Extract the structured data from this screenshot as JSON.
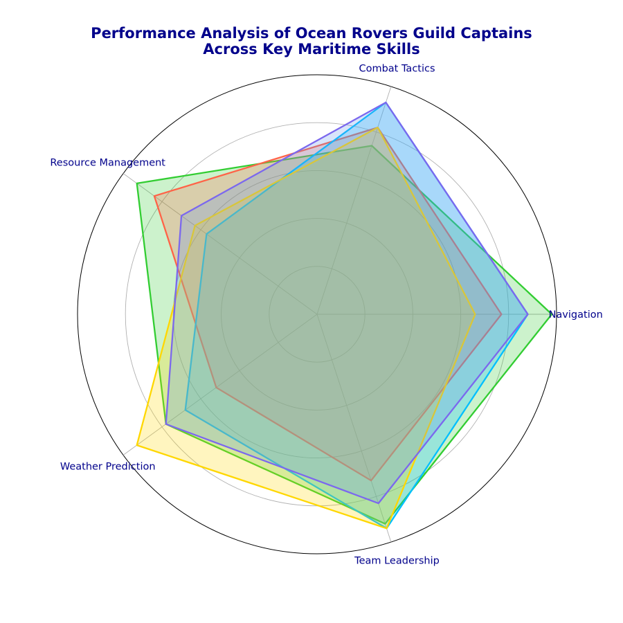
{
  "chart_data": {
    "type": "radar",
    "title_lines": [
      "Performance Analysis of Ocean Rovers Guild Captains",
      "Across Key Maritime Skills"
    ],
    "axes": [
      "Navigation",
      "Combat Tactics",
      "Resource Management",
      "Weather Prediction",
      "Team Leadership"
    ],
    "r_max": 100,
    "gridlines": [
      20,
      40,
      60,
      80,
      100
    ],
    "grid": true,
    "series": [
      {
        "values": [
          98,
          74,
          93,
          78,
          92
        ],
        "color": "#32cd32"
      },
      {
        "values": [
          77,
          82,
          84,
          52,
          73
        ],
        "color": "#ff6347"
      },
      {
        "values": [
          88,
          93,
          57,
          68,
          94
        ],
        "color": "#00bfff"
      },
      {
        "values": [
          66,
          82,
          63,
          93,
          94
        ],
        "color": "#ffd700"
      },
      {
        "values": [
          88,
          93,
          70,
          78,
          83
        ],
        "color": "#7b68ee",
        "fill": "#6495ed"
      }
    ]
  }
}
